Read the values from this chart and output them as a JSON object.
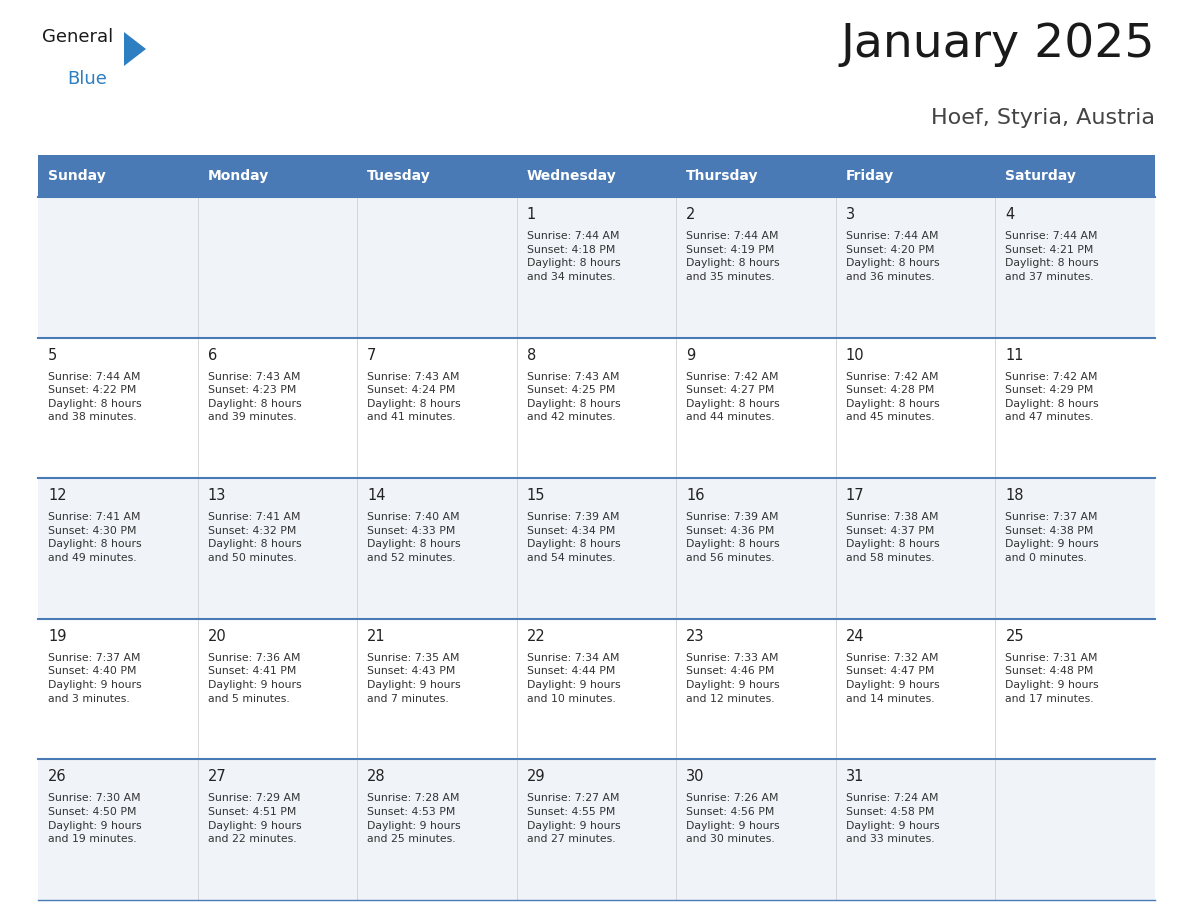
{
  "title": "January 2025",
  "subtitle": "Hoef, Styria, Austria",
  "days_of_week": [
    "Sunday",
    "Monday",
    "Tuesday",
    "Wednesday",
    "Thursday",
    "Friday",
    "Saturday"
  ],
  "header_bg": "#4a7ab5",
  "header_text": "#ffffff",
  "cell_bg_odd": "#f0f4f8",
  "cell_bg_even": "#ffffff",
  "separator_color": "#4a7ab5",
  "day_number_color": "#222222",
  "cell_text_color": "#333333",
  "title_color": "#1a1a1a",
  "subtitle_color": "#444444",
  "logo_color_general": "#1a1a1a",
  "logo_color_blue": "#2e7ec2",
  "logo_triangle_color": "#2e7ec2",
  "weeks": [
    [
      {
        "day": null,
        "info": null
      },
      {
        "day": null,
        "info": null
      },
      {
        "day": null,
        "info": null
      },
      {
        "day": 1,
        "info": "Sunrise: 7:44 AM\nSunset: 4:18 PM\nDaylight: 8 hours\nand 34 minutes."
      },
      {
        "day": 2,
        "info": "Sunrise: 7:44 AM\nSunset: 4:19 PM\nDaylight: 8 hours\nand 35 minutes."
      },
      {
        "day": 3,
        "info": "Sunrise: 7:44 AM\nSunset: 4:20 PM\nDaylight: 8 hours\nand 36 minutes."
      },
      {
        "day": 4,
        "info": "Sunrise: 7:44 AM\nSunset: 4:21 PM\nDaylight: 8 hours\nand 37 minutes."
      }
    ],
    [
      {
        "day": 5,
        "info": "Sunrise: 7:44 AM\nSunset: 4:22 PM\nDaylight: 8 hours\nand 38 minutes."
      },
      {
        "day": 6,
        "info": "Sunrise: 7:43 AM\nSunset: 4:23 PM\nDaylight: 8 hours\nand 39 minutes."
      },
      {
        "day": 7,
        "info": "Sunrise: 7:43 AM\nSunset: 4:24 PM\nDaylight: 8 hours\nand 41 minutes."
      },
      {
        "day": 8,
        "info": "Sunrise: 7:43 AM\nSunset: 4:25 PM\nDaylight: 8 hours\nand 42 minutes."
      },
      {
        "day": 9,
        "info": "Sunrise: 7:42 AM\nSunset: 4:27 PM\nDaylight: 8 hours\nand 44 minutes."
      },
      {
        "day": 10,
        "info": "Sunrise: 7:42 AM\nSunset: 4:28 PM\nDaylight: 8 hours\nand 45 minutes."
      },
      {
        "day": 11,
        "info": "Sunrise: 7:42 AM\nSunset: 4:29 PM\nDaylight: 8 hours\nand 47 minutes."
      }
    ],
    [
      {
        "day": 12,
        "info": "Sunrise: 7:41 AM\nSunset: 4:30 PM\nDaylight: 8 hours\nand 49 minutes."
      },
      {
        "day": 13,
        "info": "Sunrise: 7:41 AM\nSunset: 4:32 PM\nDaylight: 8 hours\nand 50 minutes."
      },
      {
        "day": 14,
        "info": "Sunrise: 7:40 AM\nSunset: 4:33 PM\nDaylight: 8 hours\nand 52 minutes."
      },
      {
        "day": 15,
        "info": "Sunrise: 7:39 AM\nSunset: 4:34 PM\nDaylight: 8 hours\nand 54 minutes."
      },
      {
        "day": 16,
        "info": "Sunrise: 7:39 AM\nSunset: 4:36 PM\nDaylight: 8 hours\nand 56 minutes."
      },
      {
        "day": 17,
        "info": "Sunrise: 7:38 AM\nSunset: 4:37 PM\nDaylight: 8 hours\nand 58 minutes."
      },
      {
        "day": 18,
        "info": "Sunrise: 7:37 AM\nSunset: 4:38 PM\nDaylight: 9 hours\nand 0 minutes."
      }
    ],
    [
      {
        "day": 19,
        "info": "Sunrise: 7:37 AM\nSunset: 4:40 PM\nDaylight: 9 hours\nand 3 minutes."
      },
      {
        "day": 20,
        "info": "Sunrise: 7:36 AM\nSunset: 4:41 PM\nDaylight: 9 hours\nand 5 minutes."
      },
      {
        "day": 21,
        "info": "Sunrise: 7:35 AM\nSunset: 4:43 PM\nDaylight: 9 hours\nand 7 minutes."
      },
      {
        "day": 22,
        "info": "Sunrise: 7:34 AM\nSunset: 4:44 PM\nDaylight: 9 hours\nand 10 minutes."
      },
      {
        "day": 23,
        "info": "Sunrise: 7:33 AM\nSunset: 4:46 PM\nDaylight: 9 hours\nand 12 minutes."
      },
      {
        "day": 24,
        "info": "Sunrise: 7:32 AM\nSunset: 4:47 PM\nDaylight: 9 hours\nand 14 minutes."
      },
      {
        "day": 25,
        "info": "Sunrise: 7:31 AM\nSunset: 4:48 PM\nDaylight: 9 hours\nand 17 minutes."
      }
    ],
    [
      {
        "day": 26,
        "info": "Sunrise: 7:30 AM\nSunset: 4:50 PM\nDaylight: 9 hours\nand 19 minutes."
      },
      {
        "day": 27,
        "info": "Sunrise: 7:29 AM\nSunset: 4:51 PM\nDaylight: 9 hours\nand 22 minutes."
      },
      {
        "day": 28,
        "info": "Sunrise: 7:28 AM\nSunset: 4:53 PM\nDaylight: 9 hours\nand 25 minutes."
      },
      {
        "day": 29,
        "info": "Sunrise: 7:27 AM\nSunset: 4:55 PM\nDaylight: 9 hours\nand 27 minutes."
      },
      {
        "day": 30,
        "info": "Sunrise: 7:26 AM\nSunset: 4:56 PM\nDaylight: 9 hours\nand 30 minutes."
      },
      {
        "day": 31,
        "info": "Sunrise: 7:24 AM\nSunset: 4:58 PM\nDaylight: 9 hours\nand 33 minutes."
      },
      {
        "day": null,
        "info": null
      }
    ]
  ]
}
